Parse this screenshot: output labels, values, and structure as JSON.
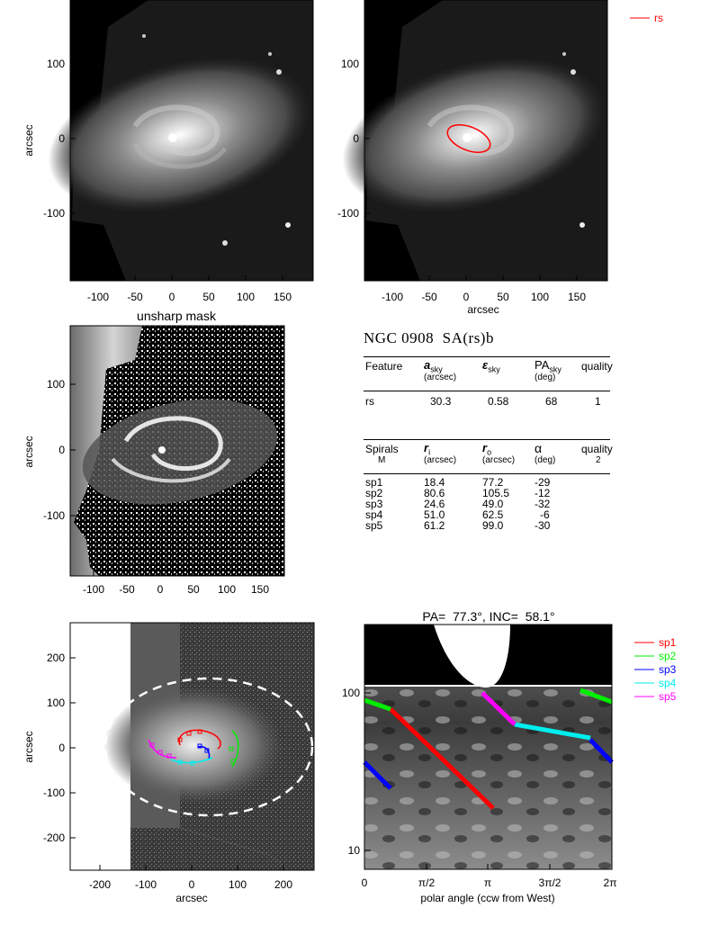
{
  "panels": {
    "top_left": {
      "ylabel": "arcsec",
      "yticks": [
        "100",
        "0",
        "-100"
      ],
      "xticks": [
        "-100",
        "-50",
        "0",
        "50",
        "100",
        "150"
      ]
    },
    "top_right": {
      "xlabel": "arcsec",
      "yticks": [
        "100",
        "0",
        "-100"
      ],
      "xticks": [
        "-100",
        "-50",
        "0",
        "50",
        "100",
        "150"
      ],
      "legend": [
        {
          "label": "rs",
          "color": "#ff0000"
        }
      ]
    },
    "unsharp": {
      "title": "unsharp mask",
      "ylabel": "arcsec",
      "yticks": [
        "100",
        "0",
        "-100"
      ],
      "xticks": [
        "-100",
        "-50",
        "0",
        "50",
        "100",
        "150"
      ]
    },
    "deprojected": {
      "ylabel": "arcsec",
      "xlabel": "arcsec",
      "yticks": [
        "200",
        "100",
        "0",
        "-100",
        "-200"
      ],
      "xticks": [
        "-200",
        "-100",
        "0",
        "100",
        "200"
      ]
    },
    "polar": {
      "title": "PA=  77.3°, INC=  58.1°",
      "xlabel": "polar angle (ccw from West)",
      "yticks": [
        "100",
        "10"
      ],
      "xticks": [
        "0",
        "π/2",
        "π",
        "3π/2",
        "2π"
      ],
      "legend": [
        {
          "label": "sp1",
          "color": "#ff0000"
        },
        {
          "label": "sp2",
          "color": "#00ee00"
        },
        {
          "label": "sp3",
          "color": "#0000ff"
        },
        {
          "label": "sp4",
          "color": "#00eeee"
        },
        {
          "label": "sp5",
          "color": "#ff00ff"
        }
      ]
    }
  },
  "info": {
    "galaxy": "NGC 0908  SA(rs)b",
    "features_header": {
      "c1": "Feature",
      "c2": "a",
      "c2sub": "sky",
      "c2unit": "(arcsec)",
      "c3": "ε",
      "c3sub": "sky",
      "c4": "PA",
      "c4sub": "sky",
      "c4unit": "(deg)",
      "c5": "quality"
    },
    "features": [
      {
        "name": "rs",
        "a": "30.3",
        "e": "0.58",
        "pa": "68",
        "q": "1"
      }
    ],
    "spirals_header": {
      "c1": "Spirals",
      "c1b": "M",
      "c2": "r",
      "c2sub": "i",
      "c2unit": "(arcsec)",
      "c3": "r",
      "c3sub": "o",
      "c3unit": "(arcsec)",
      "c4": "α",
      "c4unit": "(deg)",
      "c5": "quality",
      "c5b": "2"
    },
    "spirals": [
      {
        "name": "sp1",
        "ri": "18.4",
        "ro": "77.2",
        "alpha": "-29"
      },
      {
        "name": "sp2",
        "ri": "80.6",
        "ro": "105.5",
        "alpha": "-12"
      },
      {
        "name": "sp3",
        "ri": "24.6",
        "ro": "49.0",
        "alpha": "-32"
      },
      {
        "name": "sp4",
        "ri": "51.0",
        "ro": "62.5",
        "alpha": "-6"
      },
      {
        "name": "sp5",
        "ri": "61.2",
        "ro": "99.0",
        "alpha": "-30"
      }
    ]
  }
}
